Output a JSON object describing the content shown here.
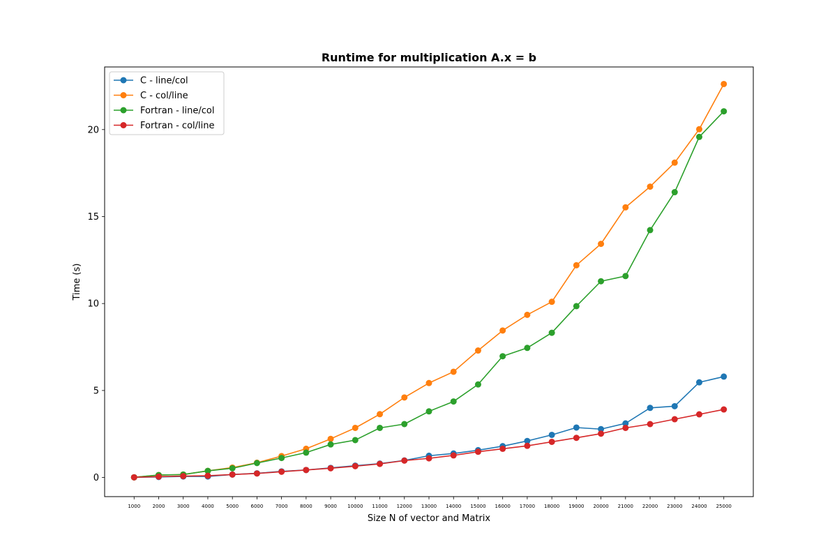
{
  "chart_data": {
    "type": "line",
    "title": "Runtime for multiplication A.x = b",
    "xlabel": "Size N of vector and Matrix",
    "ylabel": "Time (s)",
    "x": [
      1000,
      2000,
      3000,
      4000,
      5000,
      6000,
      7000,
      8000,
      9000,
      10000,
      11000,
      12000,
      13000,
      14000,
      15000,
      16000,
      17000,
      18000,
      19000,
      20000,
      21000,
      22000,
      23000,
      24000,
      25000
    ],
    "x_tick_labels": [
      "1000",
      "2000",
      "3000",
      "4000",
      "5000",
      "6000",
      "7000",
      "8000",
      "9000",
      "10000",
      "11000",
      "12000",
      "13000",
      "14000",
      "15000",
      "16000",
      "17000",
      "18000",
      "19000",
      "20000",
      "21000",
      "22000",
      "23000",
      "24000",
      "25000"
    ],
    "y_ticks": [
      0,
      5,
      10,
      15,
      20
    ],
    "y_tick_labels": [
      "0",
      "5",
      "10",
      "15",
      "20"
    ],
    "xlim": [
      -200,
      26200
    ],
    "ylim": [
      -1.1,
      23.6
    ],
    "grid": false,
    "legend_position": "top-left",
    "series": [
      {
        "name": "C - line/col",
        "color": "#1f77b4",
        "values": [
          0.01,
          0.03,
          0.06,
          0.06,
          0.17,
          0.24,
          0.35,
          0.43,
          0.55,
          0.68,
          0.8,
          0.98,
          1.25,
          1.38,
          1.57,
          1.8,
          2.1,
          2.45,
          2.87,
          2.78,
          3.11,
          4.0,
          4.1,
          5.47,
          5.8
        ]
      },
      {
        "name": "C - col/line",
        "color": "#ff7f0e",
        "values": [
          0.01,
          0.14,
          0.17,
          0.38,
          0.57,
          0.85,
          1.23,
          1.65,
          2.22,
          2.85,
          3.64,
          4.6,
          5.43,
          6.08,
          7.3,
          8.45,
          9.35,
          10.1,
          12.2,
          13.43,
          15.53,
          16.72,
          18.1,
          20.02,
          22.62
        ]
      },
      {
        "name": "Fortran - line/col",
        "color": "#2ca02c",
        "values": [
          0.01,
          0.14,
          0.17,
          0.38,
          0.53,
          0.83,
          1.12,
          1.43,
          1.9,
          2.15,
          2.85,
          3.07,
          3.8,
          4.37,
          5.35,
          6.97,
          7.45,
          8.32,
          9.85,
          11.28,
          11.58,
          14.22,
          16.4,
          19.58,
          21.05
        ]
      },
      {
        "name": "Fortran - col/line",
        "color": "#d62728",
        "values": [
          0.01,
          0.05,
          0.08,
          0.1,
          0.17,
          0.23,
          0.33,
          0.43,
          0.53,
          0.65,
          0.78,
          0.97,
          1.1,
          1.27,
          1.48,
          1.65,
          1.82,
          2.05,
          2.28,
          2.52,
          2.85,
          3.07,
          3.35,
          3.63,
          3.91
        ]
      }
    ]
  }
}
